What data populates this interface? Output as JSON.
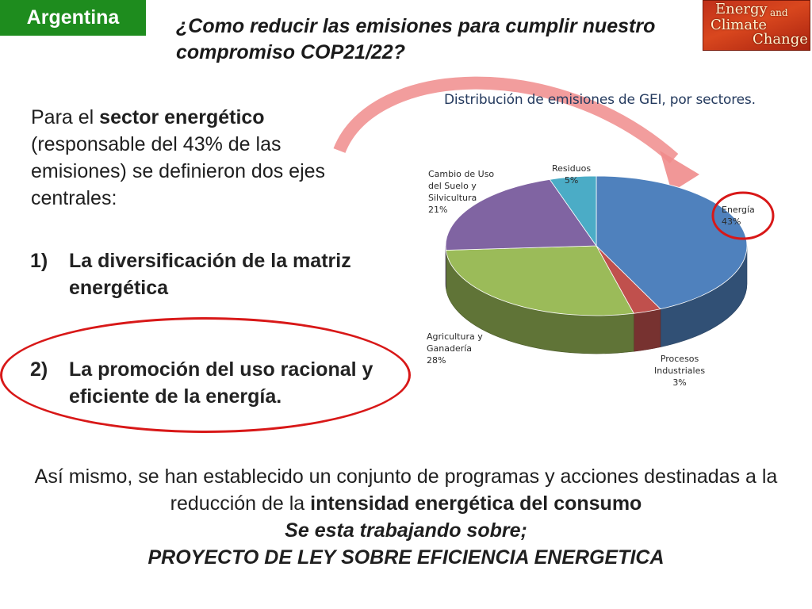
{
  "header": {
    "country": "Argentina",
    "title": "¿Como reducir las emisiones para cumplir nuestro compromiso COP21/22?",
    "logo": {
      "line1": "Energy",
      "line2": "and",
      "line3": "Climate",
      "line4": "",
      "line5": "Change"
    }
  },
  "intro": {
    "pre": "Para el ",
    "bold": "sector energético",
    "post": " (responsable del 43% de las emisiones) se definieron dos ejes centrales:"
  },
  "items": [
    {
      "num": "1)",
      "text": "La diversificación de la matriz energética"
    },
    {
      "num": "2)",
      "text": "La promoción del uso racional y eficiente de la energía."
    }
  ],
  "bottom": {
    "line1_pre": "Así mismo, se han establecido un conjunto de programas y acciones destinadas a la reducción de la ",
    "line1_bold": "intensidad energética del consumo",
    "line2": "Se esta trabajando sobre;",
    "line3": "PROYECTO DE LEY SOBRE EFICIENCIA ENERGETICA"
  },
  "chart_data": {
    "type": "pie",
    "title": "Distribución de emisiones de GEI, por sectores.",
    "slices": [
      {
        "name": "Energía",
        "label_lines": [
          "Energía"
        ],
        "value": 43,
        "value_label": "43%",
        "color": "#4f81bd"
      },
      {
        "name": "Procesos Industriales",
        "label_lines": [
          "Procesos",
          "Industriales"
        ],
        "value": 3,
        "value_label": "3%",
        "color": "#c0504d"
      },
      {
        "name": "Agricultura y Ganadería",
        "label_lines": [
          "Agricultura y",
          "Ganadería"
        ],
        "value": 28,
        "value_label": "28%",
        "color": "#9bbb59"
      },
      {
        "name": "Cambio de Uso del Suelo y Silvicultura",
        "label_lines": [
          "Cambio de Uso",
          "del Suelo y",
          "Silvicultura"
        ],
        "value": 21,
        "value_label": "21%",
        "color": "#8064a2"
      },
      {
        "name": "Residuos",
        "label_lines": [
          "Residuos"
        ],
        "value": 5,
        "value_label": "5%",
        "color": "#4bacc6"
      }
    ],
    "highlighted_slice": "Energía",
    "legend": "none"
  },
  "colors": {
    "tag_green": "#1e8c1e",
    "highlight_red": "#d81818",
    "arrow_pink": "#f08c8c"
  }
}
